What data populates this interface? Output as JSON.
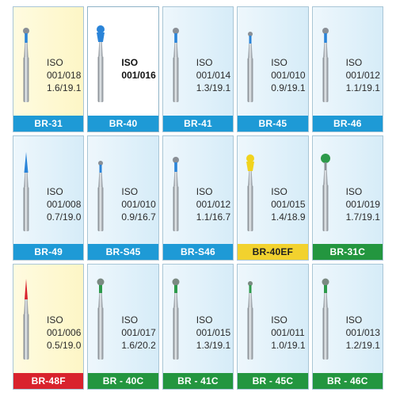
{
  "products": [
    {
      "code": "BR-31",
      "iso": "ISO",
      "size": "001/018",
      "dims": "1.6/19.1",
      "band": "blue",
      "bg": "yellow",
      "head": "#2a84d8",
      "shape": "round",
      "bold": false
    },
    {
      "code": "BR-40",
      "iso": "ISO",
      "size": "001/016",
      "dims": "",
      "band": "blue",
      "bg": "white",
      "head": "#2a84d8",
      "shape": "ring",
      "bold": true
    },
    {
      "code": "BR-41",
      "iso": "ISO",
      "size": "001/014",
      "dims": "1.3/19.1",
      "band": "blue",
      "bg": "blue",
      "head": "#2a84d8",
      "shape": "round",
      "bold": false
    },
    {
      "code": "BR-45",
      "iso": "ISO",
      "size": "001/010",
      "dims": "0.9/19.1",
      "band": "blue",
      "bg": "blue",
      "head": "#2a84d8",
      "shape": "small",
      "bold": false
    },
    {
      "code": "BR-46",
      "iso": "ISO",
      "size": "001/012",
      "dims": "1.1/19.1",
      "band": "blue",
      "bg": "blue",
      "head": "#2a84d8",
      "shape": "round",
      "bold": false
    },
    {
      "code": "BR-49",
      "iso": "ISO",
      "size": "001/008",
      "dims": "0.7/19.0",
      "band": "blue",
      "bg": "blue",
      "head": "#2a84d8",
      "shape": "taper",
      "bold": false
    },
    {
      "code": "BR-S45",
      "iso": "ISO",
      "size": "001/010",
      "dims": "0.9/16.7",
      "band": "blue",
      "bg": "blue",
      "head": "#2a84d8",
      "shape": "small",
      "bold": false
    },
    {
      "code": "BR-S46",
      "iso": "ISO",
      "size": "001/012",
      "dims": "1.1/16.7",
      "band": "blue",
      "bg": "blue",
      "head": "#2a84d8",
      "shape": "round",
      "bold": false
    },
    {
      "code": "BR-40EF",
      "iso": "ISO",
      "size": "001/015",
      "dims": "1.4/18.9",
      "band": "yellow",
      "bg": "blue",
      "head": "#f1d31e",
      "shape": "ring",
      "bold": false
    },
    {
      "code": "BR-31C",
      "iso": "ISO",
      "size": "001/019",
      "dims": "1.7/19.1",
      "band": "green",
      "bg": "blue",
      "head": "#2c9a4a",
      "shape": "ball",
      "bold": false
    },
    {
      "code": "BR-48F",
      "iso": "ISO",
      "size": "001/006",
      "dims": "0.5/19.0",
      "band": "red",
      "bg": "yellow",
      "head": "#d9232d",
      "shape": "needle",
      "bold": false
    },
    {
      "code": "BR - 40C",
      "iso": "ISO",
      "size": "001/017",
      "dims": "1.6/20.2",
      "band": "green",
      "bg": "blue",
      "head": "#2c9a4a",
      "shape": "ballc",
      "bold": false
    },
    {
      "code": "BR - 41C",
      "iso": "ISO",
      "size": "001/015",
      "dims": "1.3/19.1",
      "band": "green",
      "bg": "blue",
      "head": "#2c9a4a",
      "shape": "ballc",
      "bold": false
    },
    {
      "code": "BR - 45C",
      "iso": "ISO",
      "size": "001/011",
      "dims": "1.0/19.1",
      "band": "green",
      "bg": "blue",
      "head": "#2c9a4a",
      "shape": "smallc",
      "bold": false
    },
    {
      "code": "BR - 46C",
      "iso": "ISO",
      "size": "001/013",
      "dims": "1.2/19.1",
      "band": "green",
      "bg": "blue",
      "head": "#2c9a4a",
      "shape": "ballc",
      "bold": false
    }
  ]
}
